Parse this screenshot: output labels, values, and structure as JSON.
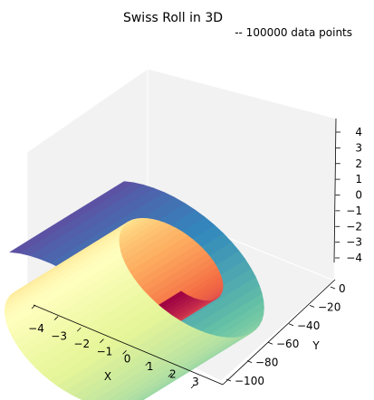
{
  "chart_data": {
    "type": "scatter",
    "projection": "3d",
    "title": "Swiss Roll in 3D",
    "subtitle": "-- 100000 data points",
    "xlabel": "X",
    "ylabel": "Y",
    "zlabel": "",
    "xlim": [
      -4.4,
      3.8
    ],
    "ylim": [
      -100,
      10
    ],
    "zlim": [
      -4,
      4.5
    ],
    "xticks": [
      -4,
      -3,
      -2,
      -1,
      0,
      1,
      2,
      3
    ],
    "yticks": [
      -100,
      -80,
      -60,
      -40,
      -20,
      0
    ],
    "zticks": [
      -4,
      -3,
      -2,
      -1,
      0,
      1,
      2,
      3,
      4
    ],
    "xtick_labels": [
      "−4",
      "−3",
      "−2",
      "−1",
      "0",
      "1",
      "2",
      "3"
    ],
    "ytick_labels": [
      "−100",
      "−80",
      "−60",
      "−40",
      "−20",
      "0"
    ],
    "ztick_labels": [
      "−4",
      "−3",
      "−2",
      "−1",
      "0",
      "1",
      "2",
      "3",
      "4"
    ],
    "grid": false,
    "colormap": "Spectral",
    "surface": {
      "shape": "swiss roll (spiral in X–Z plane, extruded along Y)",
      "angle_range": [
        1.5,
        4.7
      ],
      "y_range": [
        -100,
        0
      ]
    },
    "colors": {
      "pane": "#f2f2f2",
      "pane_edge": "#ffffff"
    }
  }
}
